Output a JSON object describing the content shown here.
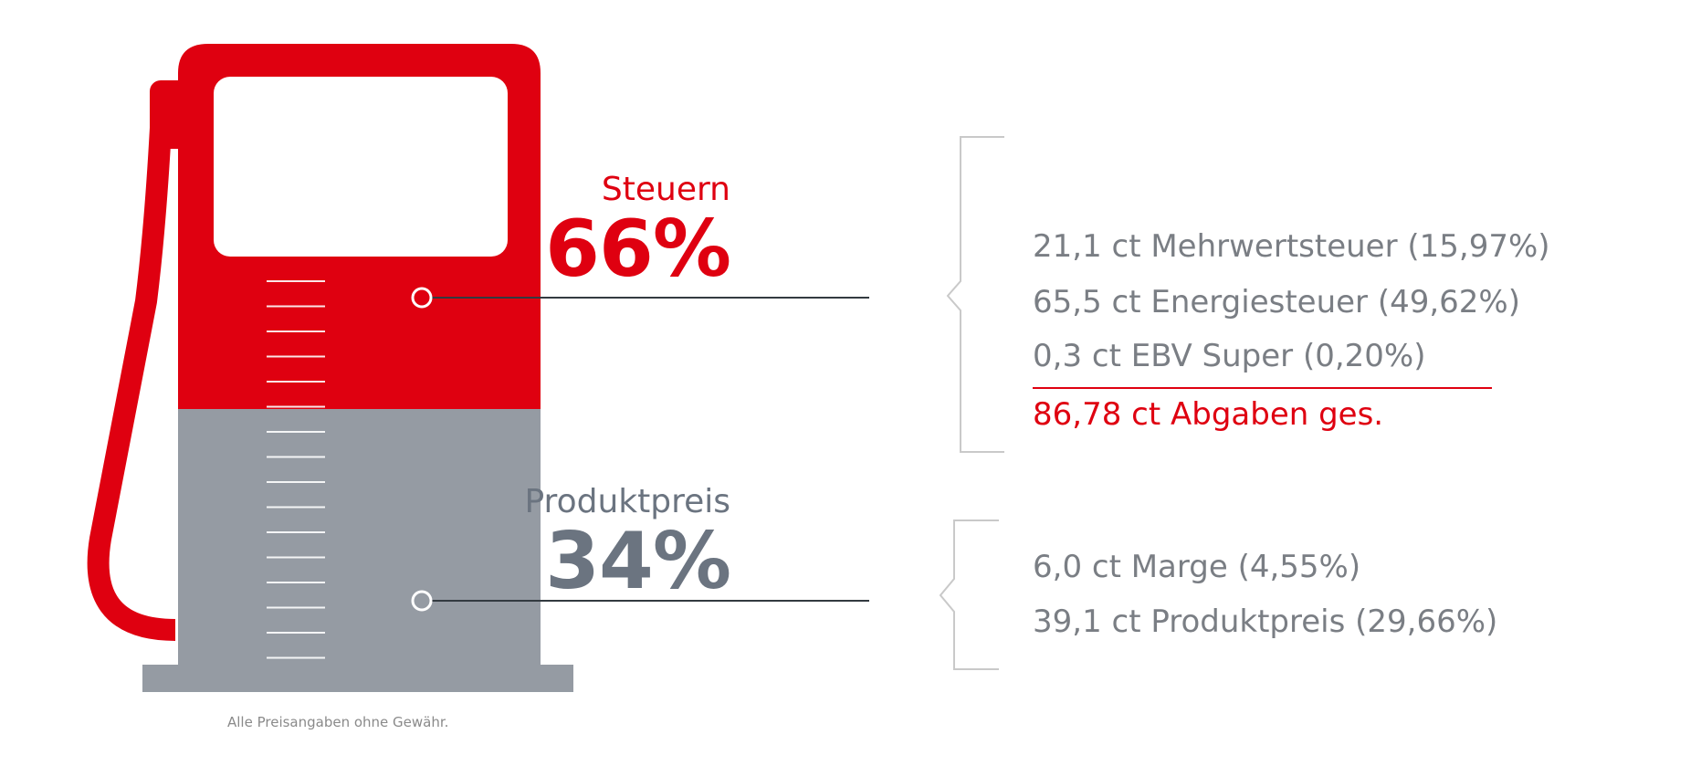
{
  "colors": {
    "tax": "#df0010",
    "product": "#959ba3",
    "product_text": "#6b7480",
    "detail_text": "#7a7e84",
    "bracket": "#c9c9c9",
    "pointer_line": "#333a40"
  },
  "sections": {
    "tax": {
      "label": "Steuern",
      "percent": "66%",
      "share": 66,
      "items": [
        "21,1 ct Mehrwertsteuer (15,97%)",
        "65,5 ct Energiesteuer (49,62%)",
        "0,3 ct EBV Super (0,20%)"
      ],
      "total": "86,78 ct Abgaben ges."
    },
    "product": {
      "label": "Produktpreis",
      "percent": "34%",
      "share": 34,
      "items": [
        "6,0 ct Marge (4,55%)",
        "39,1 ct Produktpreis (29,66%)"
      ]
    }
  },
  "disclaimer": "Alle Preisangaben ohne Gewähr."
}
